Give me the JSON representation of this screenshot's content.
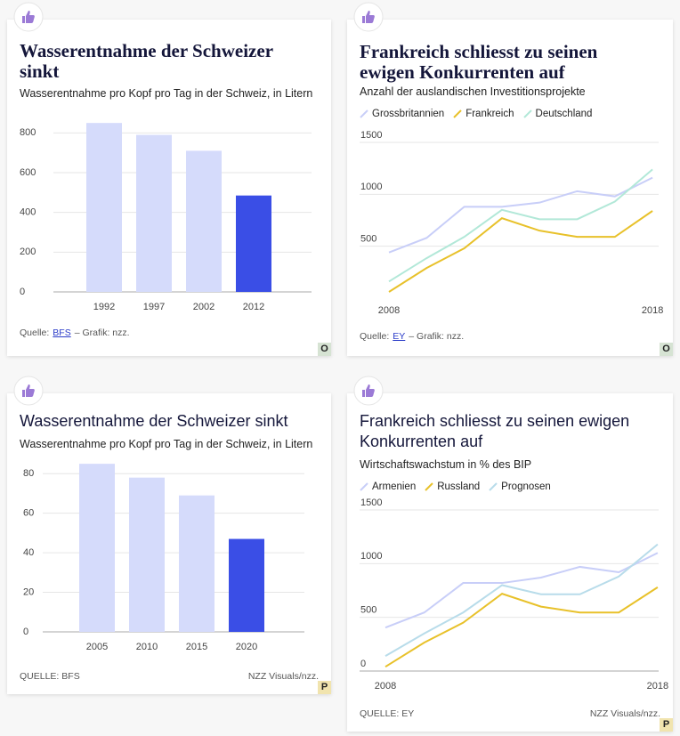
{
  "chart_data": [
    {
      "type": "bar",
      "title": "Wasserentnahme der Schweizer sinkt",
      "subtitle": "Wasserentnahme pro Kopf pro Tag in der Schweiz, in Litern",
      "categories": [
        "1992",
        "1997",
        "2002",
        "2012"
      ],
      "values": [
        850,
        790,
        710,
        485
      ],
      "colors": [
        "#d5dbfb",
        "#d5dbfb",
        "#d5dbfb",
        "#3a4ee6"
      ],
      "ylim": [
        0,
        900
      ],
      "yticks": [
        0,
        200,
        400,
        600,
        800
      ],
      "grid": true,
      "source": {
        "label": "Quelle:",
        "link": "BFS",
        "credit": "– Grafik: nzz."
      },
      "badge": "O"
    },
    {
      "type": "line",
      "title": "Frankreich schliesst zu seinen ewigen Konkurrenten auf",
      "subtitle": "Anzahl der auslandischen Investitionsprojekte",
      "categories": [
        "2008",
        null,
        null,
        null,
        null,
        null,
        null,
        "2018"
      ],
      "series": [
        {
          "name": "Grossbritannien",
          "color": "#c8cef8",
          "values": [
            440,
            580,
            880,
            880,
            920,
            1030,
            980,
            1160
          ]
        },
        {
          "name": "Frankreich",
          "color": "#e8c12a",
          "values": [
            60,
            290,
            480,
            770,
            650,
            590,
            590,
            840
          ]
        },
        {
          "name": "Deutschland",
          "color": "#b2e8d8",
          "values": [
            160,
            385,
            590,
            850,
            760,
            760,
            930,
            1240
          ]
        }
      ],
      "ylim": [
        0,
        1500
      ],
      "yticks": [
        500,
        1000,
        1500
      ],
      "grid": true,
      "source": {
        "label": "Quelle:",
        "link": "EY",
        "credit": "– Grafik: nzz."
      },
      "badge": "O"
    },
    {
      "type": "bar",
      "title": "Wasserentnahme der Schweizer sinkt",
      "subtitle": "Wasserentnahme pro Kopf pro Tag in der Schweiz, in Litern",
      "categories": [
        "2005",
        "2010",
        "2015",
        "2020"
      ],
      "values": [
        85,
        78,
        69,
        47
      ],
      "colors": [
        "#d5dbfb",
        "#d5dbfb",
        "#d5dbfb",
        "#3a4ee6"
      ],
      "ylim": [
        0,
        90
      ],
      "yticks": [
        0,
        20,
        40,
        60,
        80
      ],
      "grid": true,
      "source": {
        "label": "QUELLE: BFS",
        "credit": "NZZ Visuals/nzz."
      },
      "badge": "P"
    },
    {
      "type": "line",
      "title": "Frankreich schliesst zu seinen ewigen Konkurrenten auf",
      "subtitle": "Wirtschaftswachstum in % des BIP",
      "categories": [
        "2008",
        null,
        null,
        null,
        null,
        null,
        null,
        "2018"
      ],
      "series": [
        {
          "name": "Armenien",
          "color": "#c8cef8",
          "values": [
            405,
            545,
            820,
            820,
            870,
            970,
            920,
            1100
          ]
        },
        {
          "name": "Russland",
          "color": "#e8c12a",
          "values": [
            40,
            265,
            450,
            720,
            600,
            545,
            545,
            780
          ]
        },
        {
          "name": "Prognosen",
          "color": "#b8dcea",
          "values": [
            140,
            350,
            545,
            800,
            715,
            715,
            880,
            1180
          ]
        }
      ],
      "ylim": [
        0,
        1500
      ],
      "yticks": [
        0,
        500,
        1000,
        1500
      ],
      "grid": true,
      "source": {
        "label": "QUELLE: EY",
        "credit": "NZZ Visuals/nzz."
      },
      "badge": "P"
    }
  ]
}
